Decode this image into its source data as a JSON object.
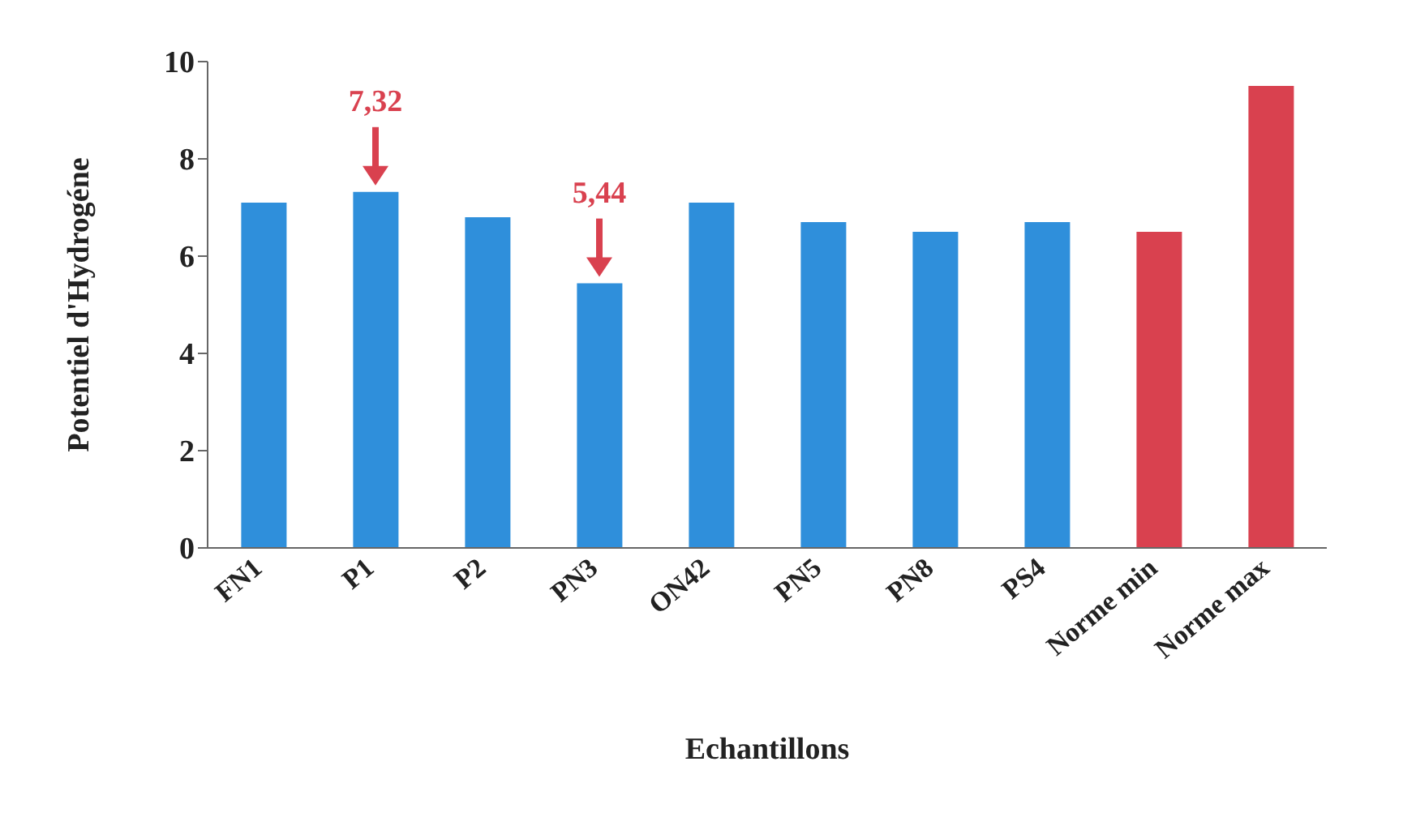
{
  "chart_data": {
    "type": "bar",
    "xlabel": "Echantillons",
    "ylabel": "Potentiel d'Hydrogéne",
    "categories": [
      "FN1",
      "P1",
      "P2",
      "PN3",
      "ON42",
      "PN5",
      "PN8",
      "PS4",
      "Norme min",
      "Norme max"
    ],
    "values": [
      7.1,
      7.32,
      6.8,
      5.44,
      7.1,
      6.7,
      6.5,
      6.7,
      6.5,
      9.5
    ],
    "colors": [
      "#2f8fdb",
      "#2f8fdb",
      "#2f8fdb",
      "#2f8fdb",
      "#2f8fdb",
      "#2f8fdb",
      "#2f8fdb",
      "#2f8fdb",
      "#d9414f",
      "#d9414f"
    ],
    "ylim": [
      0,
      10
    ],
    "yticks": [
      0,
      2,
      4,
      6,
      8,
      10
    ],
    "annotations": [
      {
        "text": "7,32",
        "x": "P1",
        "y": 7.32
      },
      {
        "text": "5,44",
        "x": "PN3",
        "y": 5.44
      }
    ]
  }
}
